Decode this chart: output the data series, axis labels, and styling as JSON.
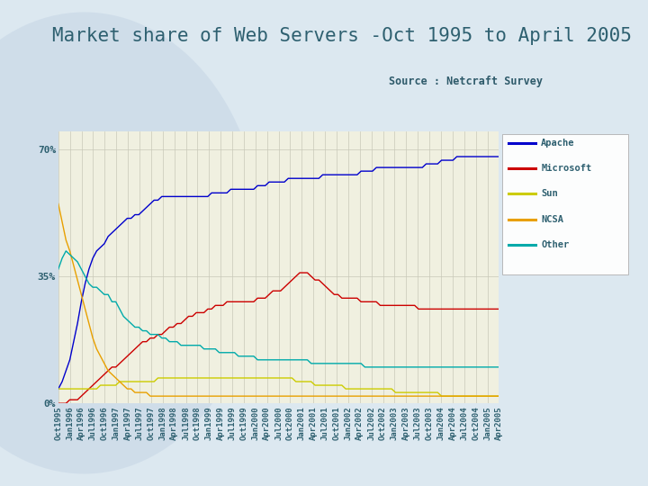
{
  "title": "Market share of Web Servers -Oct 1995 to April 2005",
  "source": "Source : Netcraft Survey",
  "title_color": "#2e6070",
  "source_color": "#2e5a6a",
  "bg_color": "#dce8f0",
  "plot_bg_color": "#f0f0e0",
  "grid_color": "#c8c8b8",
  "ytick_labels": [
    "0%",
    "35%",
    "70%"
  ],
  "ytick_vals": [
    0,
    35,
    70
  ],
  "series": {
    "Apache": {
      "color": "#0000cc",
      "data": [
        4,
        6,
        9,
        12,
        17,
        22,
        28,
        33,
        37,
        40,
        42,
        43,
        44,
        46,
        47,
        48,
        49,
        50,
        51,
        51,
        52,
        52,
        53,
        54,
        55,
        56,
        56,
        57,
        57,
        57,
        57,
        57,
        57,
        57,
        57,
        57,
        57,
        57,
        57,
        57,
        58,
        58,
        58,
        58,
        58,
        59,
        59,
        59,
        59,
        59,
        59,
        59,
        60,
        60,
        60,
        61,
        61,
        61,
        61,
        61,
        62,
        62,
        62,
        62,
        62,
        62,
        62,
        62,
        62,
        63,
        63,
        63,
        63,
        63,
        63,
        63,
        63,
        63,
        63,
        64,
        64,
        64,
        64,
        65,
        65,
        65,
        65,
        65,
        65,
        65,
        65,
        65,
        65,
        65,
        65,
        65,
        66,
        66,
        66,
        66,
        67,
        67,
        67,
        67,
        68,
        68,
        68,
        68,
        68,
        68,
        68,
        68,
        68,
        68,
        68,
        68
      ]
    },
    "Microsoft": {
      "color": "#cc0000",
      "data": [
        0,
        0,
        0,
        1,
        1,
        1,
        2,
        3,
        4,
        5,
        6,
        7,
        8,
        9,
        10,
        10,
        11,
        12,
        13,
        14,
        15,
        16,
        17,
        17,
        18,
        18,
        19,
        19,
        20,
        21,
        21,
        22,
        22,
        23,
        24,
        24,
        25,
        25,
        25,
        26,
        26,
        27,
        27,
        27,
        28,
        28,
        28,
        28,
        28,
        28,
        28,
        28,
        29,
        29,
        29,
        30,
        31,
        31,
        31,
        32,
        33,
        34,
        35,
        36,
        36,
        36,
        35,
        34,
        34,
        33,
        32,
        31,
        30,
        30,
        29,
        29,
        29,
        29,
        29,
        28,
        28,
        28,
        28,
        28,
        27,
        27,
        27,
        27,
        27,
        27,
        27,
        27,
        27,
        27,
        26,
        26,
        26,
        26,
        26,
        26,
        26,
        26,
        26,
        26,
        26,
        26,
        26,
        26,
        26,
        26,
        26,
        26,
        26,
        26,
        26,
        26
      ]
    },
    "Sun": {
      "color": "#cccc00",
      "data": [
        4,
        4,
        4,
        4,
        4,
        4,
        4,
        4,
        4,
        4,
        4,
        5,
        5,
        5,
        5,
        5,
        6,
        6,
        6,
        6,
        6,
        6,
        6,
        6,
        6,
        6,
        7,
        7,
        7,
        7,
        7,
        7,
        7,
        7,
        7,
        7,
        7,
        7,
        7,
        7,
        7,
        7,
        7,
        7,
        7,
        7,
        7,
        7,
        7,
        7,
        7,
        7,
        7,
        7,
        7,
        7,
        7,
        7,
        7,
        7,
        7,
        7,
        6,
        6,
        6,
        6,
        6,
        5,
        5,
        5,
        5,
        5,
        5,
        5,
        5,
        4,
        4,
        4,
        4,
        4,
        4,
        4,
        4,
        4,
        4,
        4,
        4,
        4,
        3,
        3,
        3,
        3,
        3,
        3,
        3,
        3,
        3,
        3,
        3,
        3,
        2,
        2,
        2,
        2,
        2,
        2,
        2,
        2,
        2,
        2,
        2,
        2,
        2,
        2,
        2,
        2
      ]
    },
    "NCSA": {
      "color": "#e8a000",
      "data": [
        55,
        50,
        45,
        42,
        38,
        34,
        30,
        26,
        22,
        18,
        15,
        13,
        11,
        9,
        8,
        7,
        6,
        5,
        4,
        4,
        3,
        3,
        3,
        3,
        2,
        2,
        2,
        2,
        2,
        2,
        2,
        2,
        2,
        2,
        2,
        2,
        2,
        2,
        2,
        2,
        2,
        2,
        2,
        2,
        2,
        2,
        2,
        2,
        2,
        2,
        2,
        2,
        2,
        2,
        2,
        2,
        2,
        2,
        2,
        2,
        2,
        2,
        2,
        2,
        2,
        2,
        2,
        2,
        2,
        2,
        2,
        2,
        2,
        2,
        2,
        2,
        2,
        2,
        2,
        2,
        2,
        2,
        2,
        2,
        2,
        2,
        2,
        2,
        2,
        2,
        2,
        2,
        2,
        2,
        2,
        2,
        2,
        2,
        2,
        2,
        2,
        2,
        2,
        2,
        2,
        2,
        2,
        2,
        2,
        2,
        2,
        2,
        2,
        2,
        2,
        2
      ]
    },
    "Other": {
      "color": "#00aaaa",
      "data": [
        37,
        40,
        42,
        41,
        40,
        39,
        37,
        35,
        33,
        32,
        32,
        31,
        30,
        30,
        28,
        28,
        26,
        24,
        23,
        22,
        21,
        21,
        20,
        20,
        19,
        19,
        19,
        18,
        18,
        17,
        17,
        17,
        16,
        16,
        16,
        16,
        16,
        16,
        15,
        15,
        15,
        15,
        14,
        14,
        14,
        14,
        14,
        13,
        13,
        13,
        13,
        13,
        12,
        12,
        12,
        12,
        12,
        12,
        12,
        12,
        12,
        12,
        12,
        12,
        12,
        12,
        11,
        11,
        11,
        11,
        11,
        11,
        11,
        11,
        11,
        11,
        11,
        11,
        11,
        11,
        10,
        10,
        10,
        10,
        10,
        10,
        10,
        10,
        10,
        10,
        10,
        10,
        10,
        10,
        10,
        10,
        10,
        10,
        10,
        10,
        10,
        10,
        10,
        10,
        10,
        10,
        10,
        10,
        10,
        10,
        10,
        10,
        10,
        10,
        10,
        10
      ]
    }
  },
  "x_labels": [
    "Oct1995",
    "Jan1996",
    "Apr1996",
    "Jul1996",
    "Oct1996",
    "Jan1997",
    "Apr1997",
    "Jul1997",
    "Oct1997",
    "Jan1998",
    "Apr1998",
    "Jul1998",
    "Oct1998",
    "Jan1999",
    "Apr1999",
    "Jul1999",
    "Oct1999",
    "Jan2000",
    "Apr2000",
    "Jul2000",
    "Oct2000",
    "Jan2001",
    "Apr2001",
    "Jul2001",
    "Oct2001",
    "Jan2002",
    "Apr2002",
    "Jul2002",
    "Oct2002",
    "Jan2003",
    "Apr2003",
    "Jul2003",
    "Oct2003",
    "Jan2004",
    "Apr2004",
    "Jul2004",
    "Oct2004",
    "Jan2005",
    "Apr2005"
  ],
  "legend_items": [
    "Apache",
    "Microsoft",
    "Sun",
    "NCSA",
    "Other"
  ],
  "title_fontsize": 15,
  "source_fontsize": 8.5,
  "tick_fontsize": 7,
  "legend_fontsize": 7.5
}
